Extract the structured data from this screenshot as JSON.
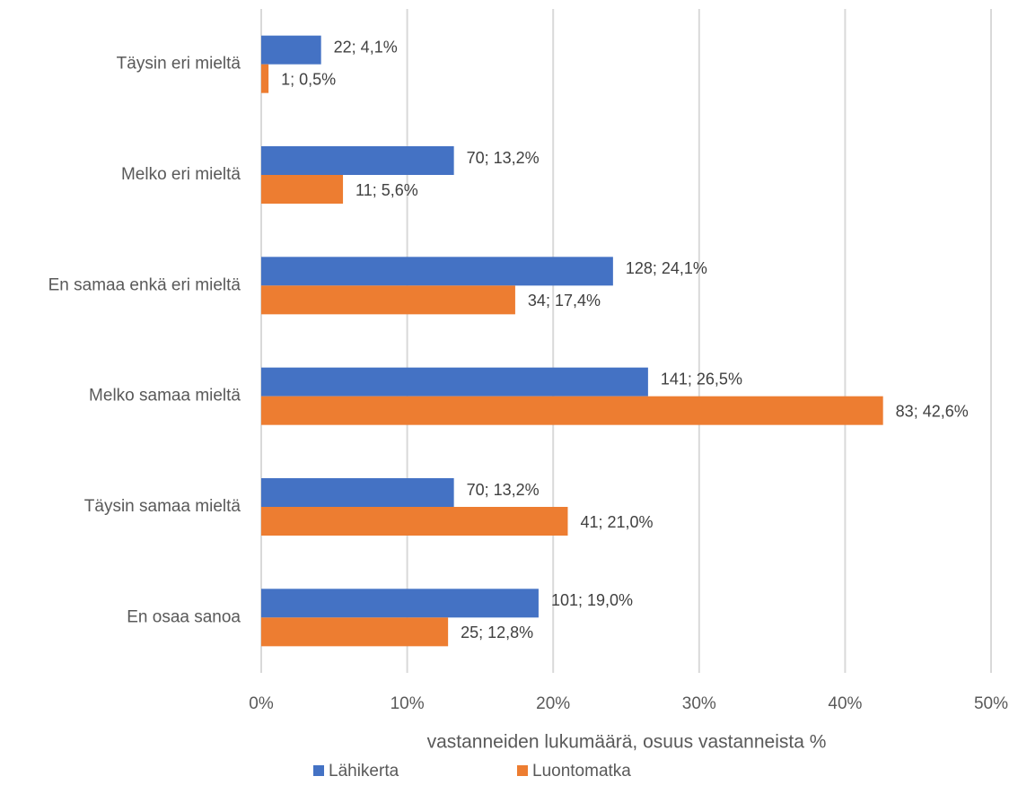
{
  "chart_data": {
    "type": "hbar",
    "x_label": "vastanneiden lukumäärä, osuus vastanneista %",
    "categories": [
      "Täysin eri mieltä",
      "Melko eri mieltä",
      "En samaa enkä eri mieltä",
      "Melko samaa mieltä",
      "Täysin samaa mieltä",
      "En osaa sanoa"
    ],
    "series": [
      {
        "name": "Lähikerta",
        "color": "#4472c4",
        "values": [
          4.1,
          13.2,
          24.1,
          26.5,
          13.2,
          19.0
        ],
        "value_labels": [
          "22; 4,1%",
          "70; 13,2%",
          "128; 24,1%",
          "141; 26,5%",
          "70; 13,2%",
          "101; 19,0%"
        ]
      },
      {
        "name": "Luontomatka",
        "color": "#ed7d31",
        "values": [
          0.5,
          5.6,
          17.4,
          42.6,
          21.0,
          12.8
        ],
        "value_labels": [
          "1; 0,5%",
          "11; 5,6%",
          "34; 17,4%",
          "83; 42,6%",
          "41; 21,0%",
          "25; 12,8%"
        ]
      }
    ],
    "xlim": [
      0,
      50
    ],
    "xticks": [
      {
        "value": 0,
        "label": "0%"
      },
      {
        "value": 10,
        "label": "10%"
      },
      {
        "value": 20,
        "label": "20%"
      },
      {
        "value": 30,
        "label": "30%"
      },
      {
        "value": 40,
        "label": "40%"
      },
      {
        "value": 50,
        "label": "50%"
      }
    ],
    "grid": true,
    "legend": "bottom"
  }
}
